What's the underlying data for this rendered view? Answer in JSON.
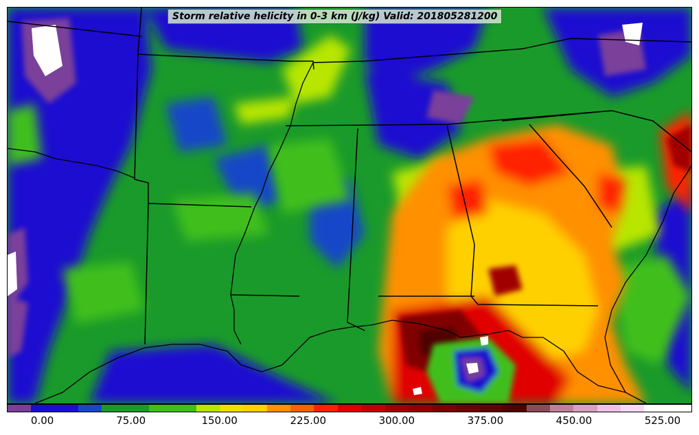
{
  "title": "Storm relative helicity in 0-3 km (J/kg) Valid: 201805281200",
  "colorbar": {
    "colors": [
      "#7a3f9a",
      "#1a0fd0",
      "#1a0fd0",
      "#1747c8",
      "#1a9a2a",
      "#1a9a2a",
      "#3fbf1a",
      "#3fbf1a",
      "#b8e600",
      "#f0e000",
      "#ffd000",
      "#ff9000",
      "#ff6000",
      "#ff2000",
      "#e00000",
      "#c00000",
      "#a00000",
      "#900000",
      "#800000",
      "#700000",
      "#600000",
      "#500000",
      "#8a4a5a",
      "#c0809a",
      "#d8a0c0",
      "#f0c0e8",
      "#f8d8f4",
      "#ffffff",
      "#ffffff"
    ],
    "ticks": [
      "0.00",
      "75.00",
      "150.00",
      "225.00",
      "300.00",
      "375.00",
      "450.00",
      "525.00"
    ],
    "tick_values": [
      0,
      75,
      150,
      225,
      300,
      375,
      450,
      525
    ],
    "min": -30,
    "max": 550
  }
}
